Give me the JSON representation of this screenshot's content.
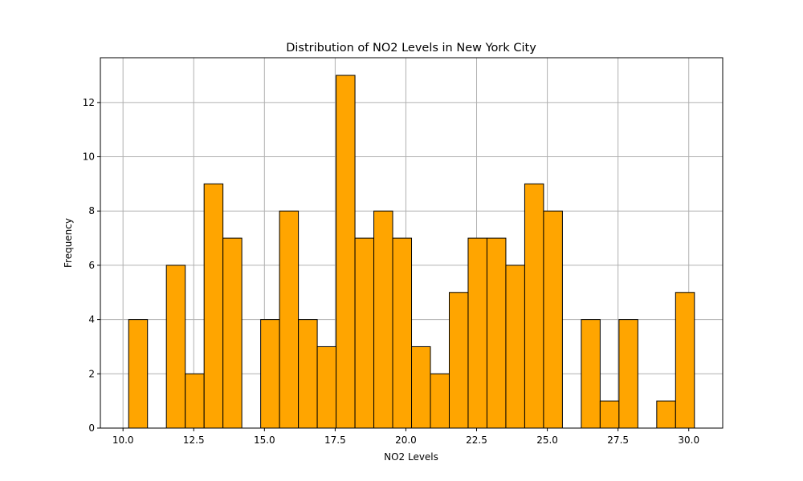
{
  "chart_data": {
    "type": "bar",
    "title": "Distribution of NO2 Levels in New York City",
    "xlabel": "NO2 Levels",
    "ylabel": "Frequency",
    "xlim": [
      9.2,
      31.2
    ],
    "ylim": [
      0,
      13.65
    ],
    "xticks": [
      10.0,
      12.5,
      15.0,
      17.5,
      20.0,
      22.5,
      25.0,
      27.5,
      30.0
    ],
    "xtick_labels": [
      "10.0",
      "12.5",
      "15.0",
      "17.5",
      "20.0",
      "22.5",
      "25.0",
      "27.5",
      "30.0"
    ],
    "yticks": [
      0,
      2,
      4,
      6,
      8,
      10,
      12
    ],
    "ytick_labels": [
      "0",
      "2",
      "4",
      "6",
      "8",
      "10",
      "12"
    ],
    "grid": true,
    "bar_color": "#ffa500",
    "edge_color": "#000000",
    "bin_start": 10.2,
    "bin_width": 0.6667,
    "values": [
      4,
      0,
      6,
      2,
      9,
      7,
      0,
      4,
      8,
      4,
      3,
      13,
      7,
      8,
      7,
      3,
      2,
      5,
      7,
      7,
      6,
      9,
      8,
      0,
      4,
      1,
      4,
      0,
      1,
      5
    ]
  }
}
